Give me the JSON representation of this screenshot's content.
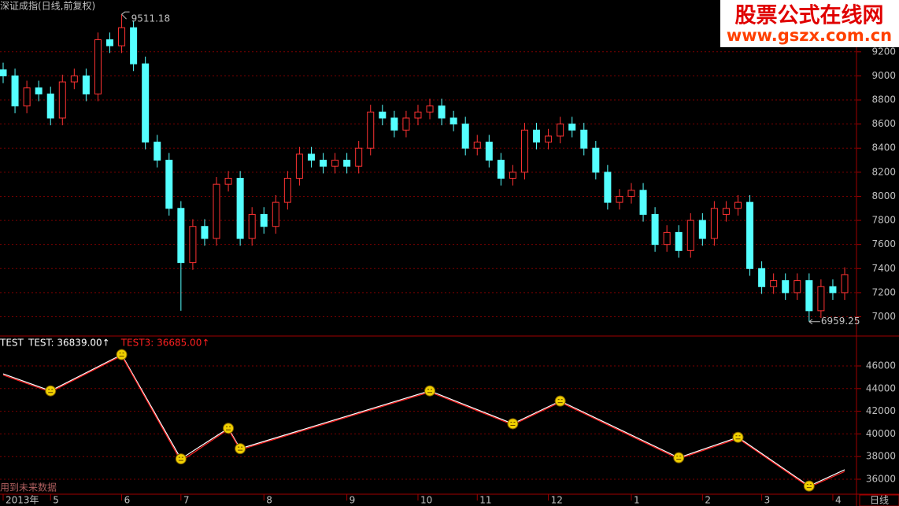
{
  "chart_data": [
    {
      "type": "candlestick",
      "title": "深证成指(日线,前复权)",
      "up_color": "#ff3232",
      "down_color": "#54ffff",
      "xlim": [
        0,
        71
      ],
      "ylim": [
        6840,
        9630
      ],
      "yticks": [
        7000,
        7200,
        7400,
        7600,
        7800,
        8000,
        8200,
        8400,
        8600,
        8800,
        9000,
        9200
      ],
      "grid": true,
      "open": [
        9050,
        9000,
        8750,
        8900,
        8850,
        8650,
        8950,
        9000,
        8850,
        9300,
        9250,
        9400,
        9100,
        8450,
        8300,
        7900,
        7450,
        7750,
        7650,
        8100,
        8150,
        7650,
        7850,
        7750,
        7950,
        8150,
        8350,
        8300,
        8250,
        8300,
        8250,
        8400,
        8700,
        8650,
        8550,
        8650,
        8700,
        8750,
        8650,
        8600,
        8400,
        8450,
        8300,
        8150,
        8200,
        8550,
        8450,
        8500,
        8600,
        8550,
        8400,
        8200,
        7950,
        8000,
        8050,
        7850,
        7600,
        7700,
        7550,
        7800,
        7650,
        7850,
        7900,
        7950,
        7400,
        7250,
        7300,
        7200,
        7300,
        7050,
        7250,
        7200
      ],
      "high": [
        9110,
        9060,
        8960,
        8960,
        8910,
        9010,
        9060,
        9060,
        9360,
        9360,
        9511.18,
        9460,
        9160,
        8510,
        8360,
        7960,
        7810,
        7810,
        8160,
        8210,
        8210,
        7910,
        7910,
        8010,
        8210,
        8410,
        8410,
        8360,
        8360,
        8360,
        8460,
        8760,
        8760,
        8710,
        8710,
        8760,
        8810,
        8810,
        8710,
        8660,
        8510,
        8510,
        8360,
        8260,
        8610,
        8610,
        8560,
        8660,
        8660,
        8610,
        8460,
        8260,
        8060,
        8110,
        8110,
        7910,
        7760,
        7760,
        7860,
        7860,
        7960,
        7960,
        8010,
        8010,
        7460,
        7360,
        7360,
        7360,
        7360,
        7310,
        7310,
        7410
      ],
      "low": [
        8940,
        8690,
        8690,
        8790,
        8590,
        8590,
        8890,
        8790,
        8790,
        9190,
        9190,
        9040,
        8390,
        8240,
        7840,
        7050,
        7390,
        7590,
        7590,
        8040,
        7590,
        7590,
        7690,
        7690,
        7890,
        8090,
        8240,
        8190,
        8190,
        8190,
        8190,
        8340,
        8590,
        8490,
        8490,
        8590,
        8640,
        8590,
        8540,
        8340,
        8340,
        8240,
        8090,
        8090,
        8140,
        8390,
        8390,
        8440,
        8490,
        8340,
        8140,
        7890,
        7890,
        7940,
        7790,
        7540,
        7540,
        7490,
        7490,
        7590,
        7590,
        7790,
        7840,
        7340,
        7190,
        7190,
        7140,
        7140,
        6959.25,
        6990,
        7140,
        7140
      ],
      "close": [
        9000,
        8750,
        8900,
        8850,
        8650,
        8950,
        9000,
        8850,
        9300,
        9250,
        9400,
        9100,
        8450,
        8300,
        7900,
        7450,
        7750,
        7650,
        8100,
        8150,
        7650,
        7850,
        7750,
        7950,
        8150,
        8350,
        8300,
        8250,
        8300,
        8250,
        8400,
        8700,
        8650,
        8550,
        8650,
        8700,
        8750,
        8650,
        8600,
        8400,
        8450,
        8300,
        8150,
        8200,
        8550,
        8450,
        8500,
        8600,
        8550,
        8400,
        8200,
        7950,
        8000,
        8050,
        7850,
        7600,
        7700,
        7550,
        7800,
        7650,
        7900,
        7900,
        7950,
        7400,
        7250,
        7300,
        7200,
        7300,
        7050,
        7250,
        7200,
        7350
      ],
      "max_index": 10,
      "min_index": 68
    },
    {
      "type": "line",
      "title": "TEST",
      "note": "用到未来数据",
      "markers": true,
      "marker_color": "#f0d000",
      "xlim": [
        0,
        71
      ],
      "ylim": [
        34680,
        48640
      ],
      "yticks": [
        36000,
        38000,
        40000,
        42000,
        44000,
        46000
      ],
      "grid": true,
      "xticks": [
        {
          "value": 0,
          "label": "2013年"
        },
        {
          "value": 4,
          "label": "5"
        },
        {
          "value": 10,
          "label": "6"
        },
        {
          "value": 15,
          "label": "7"
        },
        {
          "value": 22,
          "label": "8"
        },
        {
          "value": 29,
          "label": "9"
        },
        {
          "value": 35,
          "label": "10"
        },
        {
          "value": 40,
          "label": "11"
        },
        {
          "value": 46,
          "label": "12"
        },
        {
          "value": 53,
          "label": "1"
        },
        {
          "value": 59,
          "label": "2"
        },
        {
          "value": 64,
          "label": "3"
        },
        {
          "value": 70,
          "label": "4"
        }
      ],
      "x": [
        0,
        4,
        10,
        15,
        19,
        20,
        36,
        43,
        47,
        57,
        62,
        68,
        71
      ],
      "series": [
        {
          "name": "TEST",
          "color": "#ffffff",
          "values": [
            45300,
            43800,
            47000,
            37800,
            40500,
            38700,
            43800,
            40900,
            42900,
            37900,
            39700,
            35400,
            36839
          ],
          "readout": {
            "value": 36839,
            "label": "TEST: 36839.00↑"
          }
        },
        {
          "name": "TEST3",
          "color": "#ff2020",
          "values": [
            45200,
            43700,
            46900,
            37600,
            40400,
            38600,
            43700,
            40800,
            42800,
            37800,
            39600,
            35300,
            36685
          ],
          "readout": {
            "value": 36685,
            "label": "TEST3: 36685.00↑"
          }
        }
      ]
    }
  ],
  "period_label": "日线",
  "watermark": {
    "line1": "股票公式在线网",
    "line2": "www.gszx.com.cn"
  }
}
